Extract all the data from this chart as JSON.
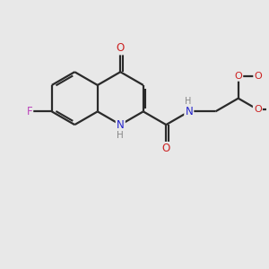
{
  "bg_color": "#e8e8e8",
  "bond_color": "#2a2a2a",
  "atom_colors": {
    "N": "#2222cc",
    "O": "#cc2222",
    "F": "#bb44bb",
    "H": "#888888"
  },
  "fig_size": [
    3.0,
    3.0
  ],
  "dpi": 100
}
